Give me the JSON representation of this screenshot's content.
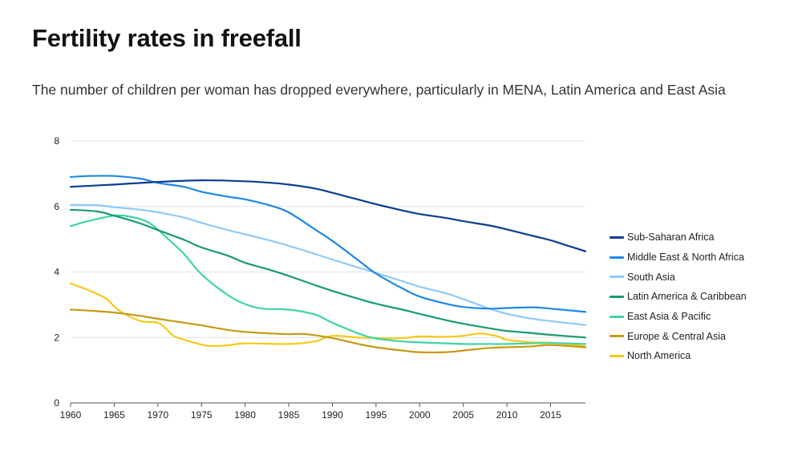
{
  "chart_data": {
    "type": "line",
    "title": "Fertility rates in freefall",
    "subtitle": "The number of children per woman has dropped everywhere, particularly in MENA, Latin America and East Asia",
    "xlabel": "",
    "ylabel": "",
    "xlim": [
      1960,
      2019
    ],
    "ylim": [
      0,
      8
    ],
    "x_ticks": [
      1960,
      1965,
      1970,
      1975,
      1980,
      1985,
      1990,
      1995,
      2000,
      2005,
      2010,
      2015
    ],
    "y_ticks": [
      0,
      2,
      4,
      6,
      8
    ],
    "grid": true,
    "legend_position": "right",
    "series": [
      {
        "name": "Sub-Saharan Africa",
        "color": "#0b3d91",
        "points": [
          [
            1960,
            6.6
          ],
          [
            1965,
            6.67
          ],
          [
            1970,
            6.75
          ],
          [
            1975,
            6.8
          ],
          [
            1980,
            6.77
          ],
          [
            1983,
            6.72
          ],
          [
            1985,
            6.67
          ],
          [
            1988,
            6.55
          ],
          [
            1990,
            6.42
          ],
          [
            1992,
            6.28
          ],
          [
            1995,
            6.07
          ],
          [
            1998,
            5.88
          ],
          [
            2000,
            5.77
          ],
          [
            2003,
            5.65
          ],
          [
            2005,
            5.55
          ],
          [
            2008,
            5.42
          ],
          [
            2010,
            5.3
          ],
          [
            2013,
            5.1
          ],
          [
            2015,
            4.97
          ],
          [
            2017,
            4.8
          ],
          [
            2019,
            4.63
          ]
        ]
      },
      {
        "name": "Middle East & North Africa",
        "color": "#1e88e5",
        "points": [
          [
            1960,
            6.9
          ],
          [
            1962,
            6.93
          ],
          [
            1965,
            6.93
          ],
          [
            1968,
            6.85
          ],
          [
            1970,
            6.72
          ],
          [
            1973,
            6.6
          ],
          [
            1975,
            6.45
          ],
          [
            1978,
            6.3
          ],
          [
            1980,
            6.22
          ],
          [
            1983,
            6.02
          ],
          [
            1985,
            5.82
          ],
          [
            1988,
            5.3
          ],
          [
            1990,
            4.95
          ],
          [
            1993,
            4.35
          ],
          [
            1995,
            3.95
          ],
          [
            1998,
            3.5
          ],
          [
            2000,
            3.25
          ],
          [
            2003,
            3.03
          ],
          [
            2005,
            2.93
          ],
          [
            2008,
            2.88
          ],
          [
            2010,
            2.9
          ],
          [
            2013,
            2.92
          ],
          [
            2015,
            2.88
          ],
          [
            2019,
            2.78
          ]
        ]
      },
      {
        "name": "South Asia",
        "color": "#90caf9",
        "points": [
          [
            1960,
            6.05
          ],
          [
            1963,
            6.04
          ],
          [
            1965,
            5.98
          ],
          [
            1968,
            5.9
          ],
          [
            1970,
            5.82
          ],
          [
            1973,
            5.66
          ],
          [
            1975,
            5.5
          ],
          [
            1978,
            5.28
          ],
          [
            1980,
            5.15
          ],
          [
            1983,
            4.95
          ],
          [
            1985,
            4.8
          ],
          [
            1988,
            4.55
          ],
          [
            1990,
            4.38
          ],
          [
            1993,
            4.13
          ],
          [
            1995,
            3.97
          ],
          [
            1998,
            3.72
          ],
          [
            2000,
            3.55
          ],
          [
            2003,
            3.35
          ],
          [
            2005,
            3.17
          ],
          [
            2008,
            2.88
          ],
          [
            2010,
            2.72
          ],
          [
            2013,
            2.57
          ],
          [
            2015,
            2.5
          ],
          [
            2019,
            2.38
          ]
        ]
      },
      {
        "name": "Latin America & Caribbean",
        "color": "#199c6a",
        "points": [
          [
            1960,
            5.9
          ],
          [
            1963,
            5.85
          ],
          [
            1965,
            5.72
          ],
          [
            1968,
            5.48
          ],
          [
            1970,
            5.28
          ],
          [
            1973,
            4.98
          ],
          [
            1975,
            4.75
          ],
          [
            1978,
            4.5
          ],
          [
            1980,
            4.28
          ],
          [
            1983,
            4.05
          ],
          [
            1985,
            3.88
          ],
          [
            1988,
            3.6
          ],
          [
            1990,
            3.42
          ],
          [
            1993,
            3.18
          ],
          [
            1995,
            3.03
          ],
          [
            1998,
            2.85
          ],
          [
            2000,
            2.72
          ],
          [
            2003,
            2.53
          ],
          [
            2005,
            2.42
          ],
          [
            2008,
            2.28
          ],
          [
            2010,
            2.2
          ],
          [
            2013,
            2.13
          ],
          [
            2015,
            2.08
          ],
          [
            2019,
            2.0
          ]
        ]
      },
      {
        "name": "East Asia & Pacific",
        "color": "#3fd4a4",
        "points": [
          [
            1960,
            5.4
          ],
          [
            1962,
            5.55
          ],
          [
            1965,
            5.72
          ],
          [
            1967,
            5.68
          ],
          [
            1969,
            5.5
          ],
          [
            1971,
            5.05
          ],
          [
            1973,
            4.55
          ],
          [
            1975,
            3.93
          ],
          [
            1978,
            3.3
          ],
          [
            1980,
            3.02
          ],
          [
            1982,
            2.88
          ],
          [
            1985,
            2.85
          ],
          [
            1988,
            2.7
          ],
          [
            1990,
            2.45
          ],
          [
            1993,
            2.12
          ],
          [
            1995,
            1.97
          ],
          [
            1998,
            1.88
          ],
          [
            2000,
            1.85
          ],
          [
            2003,
            1.82
          ],
          [
            2005,
            1.8
          ],
          [
            2008,
            1.8
          ],
          [
            2010,
            1.8
          ],
          [
            2015,
            1.83
          ],
          [
            2019,
            1.8
          ]
        ]
      },
      {
        "name": "Europe & Central Asia",
        "color": "#c49a12",
        "points": [
          [
            1960,
            2.85
          ],
          [
            1962,
            2.82
          ],
          [
            1965,
            2.76
          ],
          [
            1968,
            2.66
          ],
          [
            1970,
            2.57
          ],
          [
            1973,
            2.45
          ],
          [
            1975,
            2.37
          ],
          [
            1978,
            2.23
          ],
          [
            1980,
            2.17
          ],
          [
            1983,
            2.12
          ],
          [
            1985,
            2.1
          ],
          [
            1987,
            2.1
          ],
          [
            1990,
            1.98
          ],
          [
            1993,
            1.8
          ],
          [
            1995,
            1.7
          ],
          [
            1998,
            1.6
          ],
          [
            2000,
            1.55
          ],
          [
            2003,
            1.55
          ],
          [
            2005,
            1.6
          ],
          [
            2008,
            1.68
          ],
          [
            2010,
            1.7
          ],
          [
            2013,
            1.73
          ],
          [
            2015,
            1.77
          ],
          [
            2019,
            1.7
          ]
        ]
      },
      {
        "name": "North America",
        "color": "#f7c919",
        "points": [
          [
            1960,
            3.65
          ],
          [
            1962,
            3.45
          ],
          [
            1964,
            3.2
          ],
          [
            1965,
            2.95
          ],
          [
            1966,
            2.75
          ],
          [
            1968,
            2.5
          ],
          [
            1970,
            2.45
          ],
          [
            1971,
            2.25
          ],
          [
            1972,
            2.02
          ],
          [
            1975,
            1.78
          ],
          [
            1976,
            1.74
          ],
          [
            1978,
            1.76
          ],
          [
            1980,
            1.82
          ],
          [
            1985,
            1.8
          ],
          [
            1988,
            1.88
          ],
          [
            1990,
            2.05
          ],
          [
            1993,
            2.0
          ],
          [
            1995,
            1.98
          ],
          [
            1998,
            1.98
          ],
          [
            2000,
            2.03
          ],
          [
            2003,
            2.02
          ],
          [
            2005,
            2.05
          ],
          [
            2007,
            2.12
          ],
          [
            2009,
            2.03
          ],
          [
            2010,
            1.93
          ],
          [
            2013,
            1.85
          ],
          [
            2015,
            1.84
          ],
          [
            2019,
            1.73
          ]
        ]
      }
    ]
  }
}
